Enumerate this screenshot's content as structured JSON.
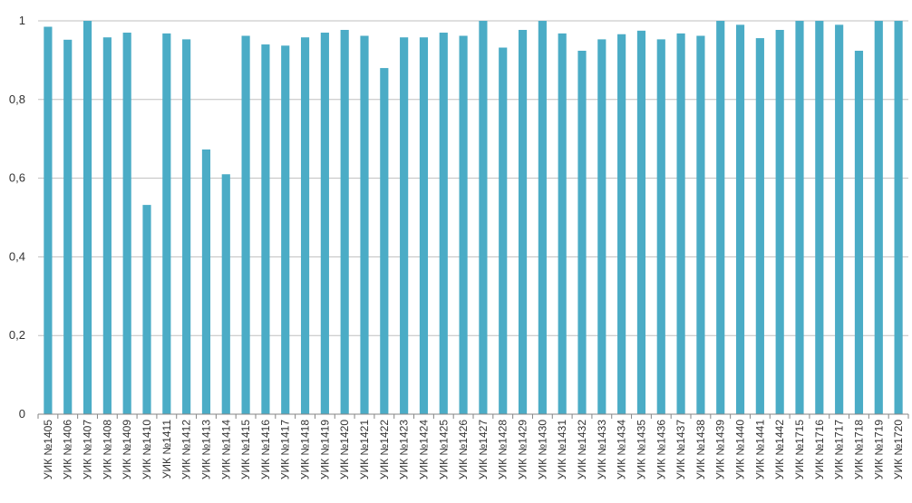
{
  "chart_data": {
    "type": "bar",
    "categories": [
      "УИК №1405",
      "УИК №1406",
      "УИК №1407",
      "УИК №1408",
      "УИК №1409",
      "УИК №1410",
      "УИК №1411",
      "УИК №1412",
      "УИК №1413",
      "УИК №1414",
      "УИК №1415",
      "УИК №1416",
      "УИК №1417",
      "УИК №1418",
      "УИК №1419",
      "УИК №1420",
      "УИК №1421",
      "УИК №1422",
      "УИК №1423",
      "УИК №1424",
      "УИК №1425",
      "УИК №1426",
      "УИК №1427",
      "УИК №1428",
      "УИК №1429",
      "УИК №1430",
      "УИК №1431",
      "УИК №1432",
      "УИК №1433",
      "УИК №1434",
      "УИК №1435",
      "УИК №1436",
      "УИК №1437",
      "УИК №1438",
      "УИК №1439",
      "УИК №1440",
      "УИК №1441",
      "УИК №1442",
      "УИК №1715",
      "УИК №1716",
      "УИК №1717",
      "УИК №1718",
      "УИК №1719",
      "УИК №1720"
    ],
    "values": [
      0.985,
      0.952,
      1.0,
      0.958,
      0.97,
      0.532,
      0.968,
      0.953,
      0.673,
      0.61,
      0.962,
      0.94,
      0.937,
      0.958,
      0.97,
      0.977,
      0.962,
      0.88,
      0.958,
      0.958,
      0.97,
      0.962,
      1.0,
      0.932,
      0.977,
      1.0,
      0.968,
      0.924,
      0.953,
      0.966,
      0.975,
      0.953,
      0.968,
      0.962,
      1.0,
      0.99,
      0.956,
      0.977,
      1.0,
      1.0,
      0.99,
      0.924,
      1.0,
      1.0
    ],
    "ylim": [
      0,
      1
    ],
    "yticks": [
      "0",
      "0,2",
      "0,4",
      "0,6",
      "0,8",
      "1"
    ],
    "grid": true,
    "bar_color": "#4bacc6",
    "gridline_color": "#bfbfbf"
  }
}
